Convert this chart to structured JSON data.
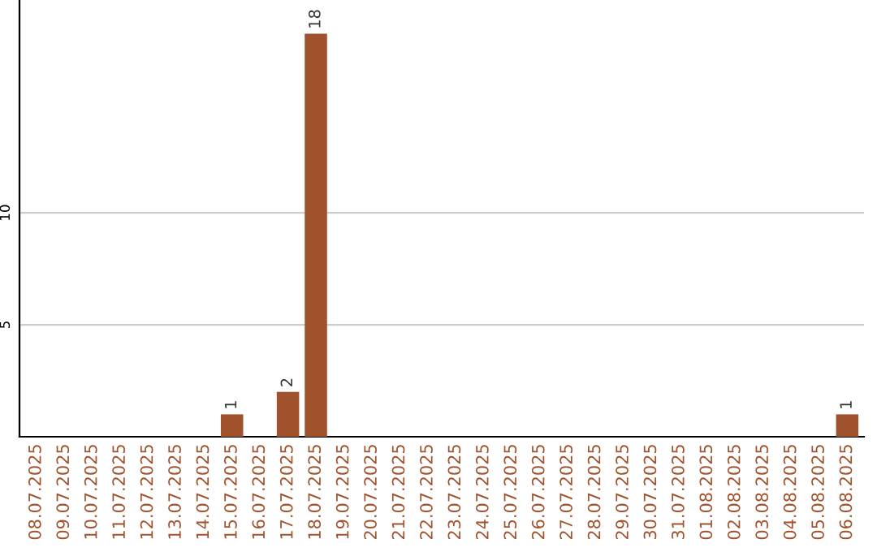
{
  "chart_data": {
    "type": "bar",
    "categories": [
      "08.07.2025",
      "09.07.2025",
      "10.07.2025",
      "11.07.2025",
      "12.07.2025",
      "13.07.2025",
      "14.07.2025",
      "15.07.2025",
      "16.07.2025",
      "17.07.2025",
      "18.07.2025",
      "19.07.2025",
      "20.07.2025",
      "21.07.2025",
      "22.07.2025",
      "23.07.2025",
      "24.07.2025",
      "25.07.2025",
      "26.07.2025",
      "27.07.2025",
      "28.07.2025",
      "29.07.2025",
      "30.07.2025",
      "31.07.2025",
      "01.08.2025",
      "02.08.2025",
      "03.08.2025",
      "04.08.2025",
      "05.08.2025",
      "06.08.2025"
    ],
    "values": [
      0,
      0,
      0,
      0,
      0,
      0,
      0,
      1,
      0,
      2,
      18,
      0,
      0,
      0,
      0,
      0,
      0,
      0,
      0,
      0,
      0,
      0,
      0,
      0,
      0,
      0,
      0,
      0,
      0,
      1
    ],
    "value_labels": [
      null,
      null,
      null,
      null,
      null,
      null,
      null,
      "1",
      null,
      "2",
      "18",
      null,
      null,
      null,
      null,
      null,
      null,
      null,
      null,
      null,
      null,
      null,
      null,
      null,
      null,
      null,
      null,
      null,
      null,
      "1"
    ],
    "color": "#a0522d",
    "ylim": [
      0,
      19.5
    ],
    "yticks": [
      5,
      10
    ],
    "grid": "y",
    "legend": false
  }
}
